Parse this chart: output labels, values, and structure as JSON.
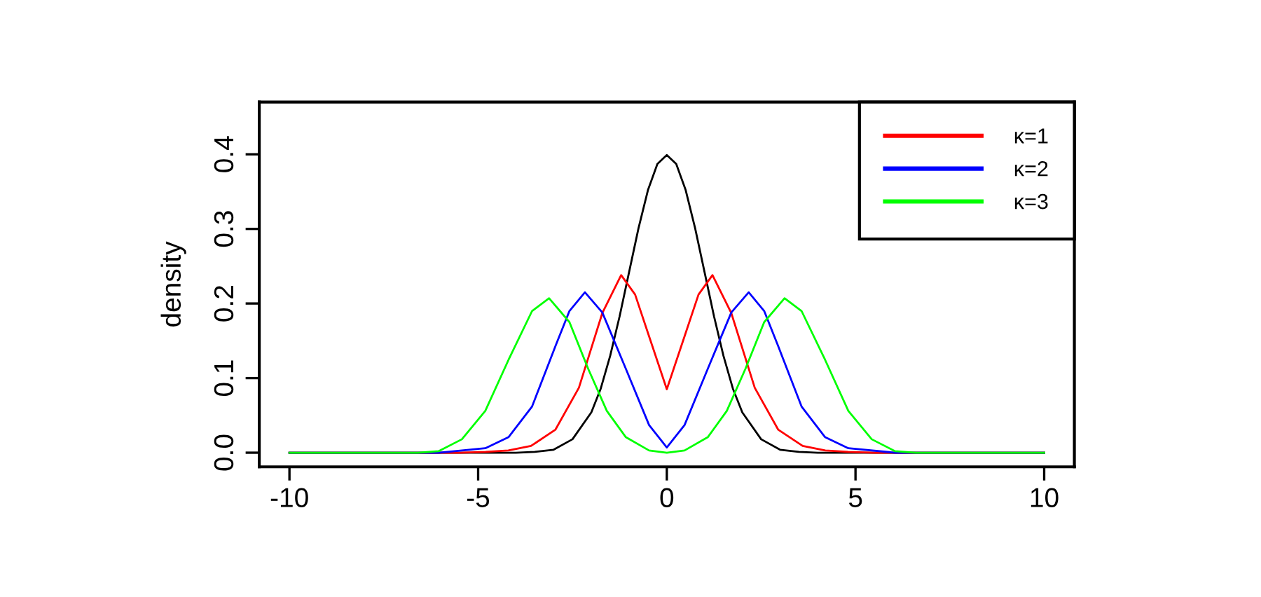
{
  "chart_data": {
    "type": "line",
    "ylabel": "density",
    "xlim": [
      -10.8,
      10.8
    ],
    "ylim": [
      -0.019,
      0.47
    ],
    "xticks": [
      -10,
      -5,
      0,
      5,
      10
    ],
    "yticks": [
      {
        "value": 0,
        "label": "0.0"
      },
      0.1,
      0.2,
      0.3,
      0.4
    ],
    "grid": false,
    "legend": "top right",
    "marker": "none",
    "line_style": "solid",
    "series": [
      {
        "color": "#000000",
        "x": [
          -10,
          -5,
          -4,
          -3.5,
          -3,
          -2.5,
          -2,
          -1.75,
          -1.5,
          -1.25,
          -1,
          -0.75,
          -0.5,
          -0.25,
          0,
          0.25,
          0.5,
          0.75,
          1,
          1.25,
          1.5,
          1.75,
          2,
          2.5,
          3,
          3.5,
          4,
          5,
          10
        ],
        "values": [
          0,
          0,
          0,
          0.001,
          0.004,
          0.018,
          0.054,
          0.086,
          0.13,
          0.183,
          0.242,
          0.301,
          0.352,
          0.387,
          0.399,
          0.387,
          0.352,
          0.301,
          0.242,
          0.183,
          0.13,
          0.086,
          0.054,
          0.018,
          0.004,
          0.001,
          0,
          0,
          0
        ]
      },
      {
        "name": "κ=1",
        "color": "#ff0000",
        "x": [
          -10,
          -5.5,
          -4.8,
          -4.2,
          -3.6,
          -2.95,
          -2.33,
          -1.71,
          -1.21,
          -0.84,
          -0.47,
          0,
          0.47,
          0.84,
          1.21,
          1.71,
          2.33,
          2.95,
          3.6,
          4.2,
          4.8,
          5.5,
          10
        ],
        "values": [
          0,
          0,
          0.001,
          0.003,
          0.009,
          0.031,
          0.087,
          0.187,
          0.238,
          0.212,
          0.156,
          0.085,
          0.156,
          0.212,
          0.238,
          0.187,
          0.087,
          0.031,
          0.009,
          0.003,
          0.001,
          0,
          0
        ]
      },
      {
        "name": "κ=2",
        "color": "#0000ff",
        "x": [
          -10,
          -6.05,
          -4.81,
          -4.19,
          -3.57,
          -2.95,
          -2.58,
          -2.17,
          -1.71,
          -1.09,
          -0.47,
          0,
          0.47,
          1.09,
          1.71,
          2.17,
          2.58,
          2.95,
          3.57,
          4.19,
          4.81,
          6.05,
          10
        ],
        "values": [
          0,
          0,
          0.006,
          0.021,
          0.062,
          0.143,
          0.19,
          0.215,
          0.188,
          0.113,
          0.037,
          0.007,
          0.037,
          0.113,
          0.188,
          0.215,
          0.19,
          0.143,
          0.062,
          0.021,
          0.006,
          0,
          0
        ]
      },
      {
        "name": "κ=3",
        "color": "#00ff00",
        "x": [
          -10,
          -6.6,
          -6.05,
          -5.43,
          -4.81,
          -4.19,
          -3.57,
          -3.12,
          -2.58,
          -2.08,
          -1.59,
          -1.09,
          -0.47,
          0,
          0.47,
          1.09,
          1.59,
          2.08,
          2.58,
          3.12,
          3.57,
          4.19,
          4.81,
          5.43,
          6.05,
          6.6,
          10
        ],
        "values": [
          0,
          0,
          0.002,
          0.018,
          0.056,
          0.125,
          0.19,
          0.207,
          0.175,
          0.112,
          0.056,
          0.021,
          0.003,
          0,
          0.003,
          0.021,
          0.056,
          0.112,
          0.175,
          0.207,
          0.19,
          0.125,
          0.056,
          0.018,
          0.002,
          0,
          0
        ]
      }
    ]
  }
}
